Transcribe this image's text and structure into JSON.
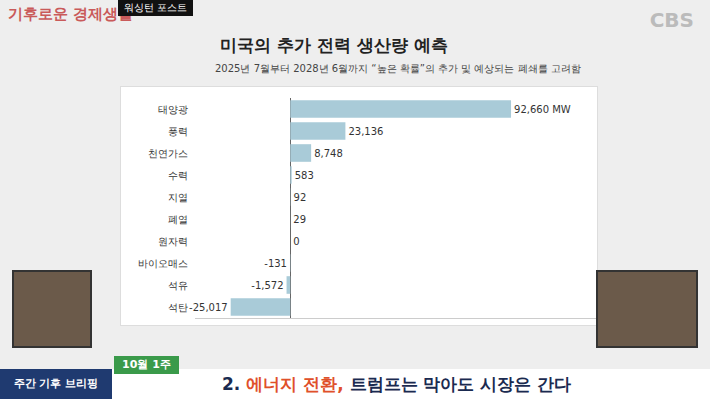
{
  "chart_data": {
    "type": "bar",
    "orientation": "horizontal",
    "title": "미국의 추가 전력 생산량 예측",
    "subtitle": "2025년 7월부터 2028년 6월까지 “높은 확률”의 추가 및 예상되는 폐쇄를 고려함",
    "categories": [
      "태양광",
      "풍력",
      "천연가스",
      "수력",
      "지열",
      "폐열",
      "원자력",
      "바이오매스",
      "석유",
      "석탄"
    ],
    "values": [
      92660,
      23136,
      8748,
      583,
      92,
      29,
      0,
      -131,
      -1572,
      -25017
    ],
    "value_labels": [
      "92,660 MW",
      "23,136",
      "8,748",
      "583",
      "92",
      "29",
      "0",
      "-131",
      "-1,572",
      "-25,017"
    ],
    "color": "#a9cbd8",
    "data_labels": true,
    "tick_labels": "y",
    "grid": true,
    "xlim": [
      -40000,
      130000
    ],
    "xticks": [
      0
    ]
  },
  "broadcast": {
    "program": "기후로운 경제생활",
    "source": "워싱턴 포스트",
    "channel": "CBS",
    "tag": "주간 기후 브리핑",
    "week": "10월 1주",
    "headline": [
      "2. ",
      "에너지 전환,",
      " 트럼프는 막아도 시장은 간다"
    ]
  }
}
